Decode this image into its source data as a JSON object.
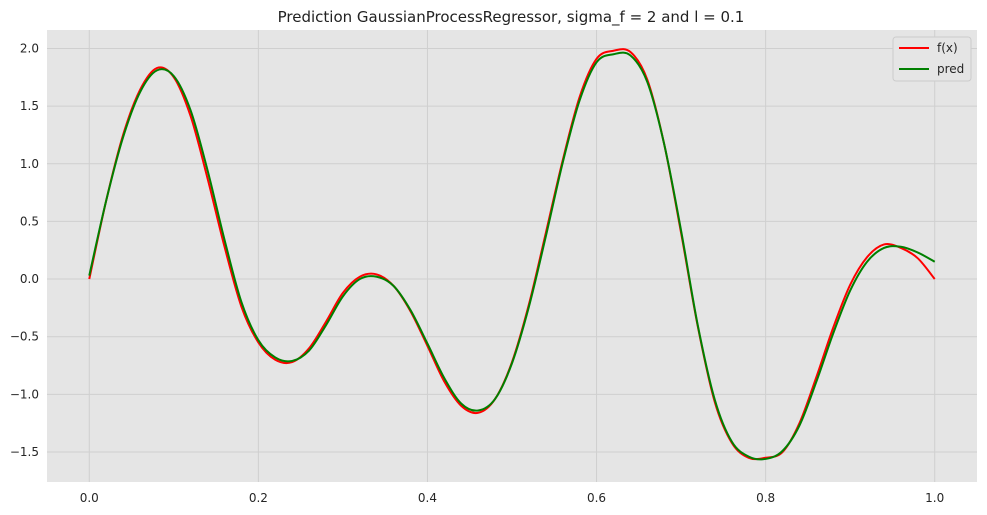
{
  "chart_data": {
    "type": "line",
    "title": "Prediction GaussianProcessRegressor, sigma_f = 2 and l = 0.1",
    "xlabel": "",
    "ylabel": "",
    "xlim": [
      -0.05,
      1.05
    ],
    "ylim": [
      -1.76,
      2.16
    ],
    "grid": true,
    "legend_position": "top-right",
    "x_ticks": [
      0.0,
      0.2,
      0.4,
      0.6,
      0.8,
      1.0
    ],
    "x_tick_labels": [
      "0.0",
      "0.2",
      "0.4",
      "0.6",
      "0.8",
      "1.0"
    ],
    "y_ticks": [
      -1.5,
      -1.0,
      -0.5,
      0.0,
      0.5,
      1.0,
      1.5,
      2.0
    ],
    "y_tick_labels": [
      "−1.5",
      "−1.0",
      "−0.5",
      "0.0",
      "0.5",
      "1.0",
      "1.5",
      "2.0"
    ],
    "series": [
      {
        "name": "f(x)",
        "color": "#ff0000",
        "x": [
          0.0,
          0.02,
          0.04,
          0.06,
          0.08,
          0.1,
          0.12,
          0.14,
          0.16,
          0.18,
          0.2,
          0.22,
          0.24,
          0.26,
          0.28,
          0.3,
          0.32,
          0.34,
          0.36,
          0.38,
          0.4,
          0.42,
          0.44,
          0.46,
          0.48,
          0.5,
          0.52,
          0.54,
          0.56,
          0.58,
          0.6,
          0.62,
          0.64,
          0.66,
          0.68,
          0.7,
          0.72,
          0.74,
          0.76,
          0.78,
          0.8,
          0.82,
          0.84,
          0.86,
          0.88,
          0.9,
          0.92,
          0.94,
          0.96,
          0.98,
          1.0
        ],
        "values": [
          0.0,
          0.68,
          1.25,
          1.64,
          1.83,
          1.75,
          1.41,
          0.87,
          0.28,
          -0.24,
          -0.55,
          -0.7,
          -0.72,
          -0.6,
          -0.37,
          -0.12,
          0.02,
          0.04,
          -0.06,
          -0.28,
          -0.58,
          -0.89,
          -1.1,
          -1.16,
          -1.04,
          -0.72,
          -0.22,
          0.4,
          1.03,
          1.58,
          1.91,
          1.98,
          1.97,
          1.73,
          1.17,
          0.4,
          -0.42,
          -1.07,
          -1.42,
          -1.55,
          -1.55,
          -1.5,
          -1.25,
          -0.85,
          -0.42,
          -0.05,
          0.19,
          0.3,
          0.27,
          0.18,
          0.0
        ]
      },
      {
        "name": "pred",
        "color": "#008000",
        "x": [
          0.0,
          0.02,
          0.04,
          0.06,
          0.08,
          0.1,
          0.12,
          0.14,
          0.16,
          0.18,
          0.2,
          0.22,
          0.24,
          0.26,
          0.28,
          0.3,
          0.32,
          0.34,
          0.36,
          0.38,
          0.4,
          0.42,
          0.44,
          0.46,
          0.48,
          0.5,
          0.52,
          0.54,
          0.56,
          0.58,
          0.6,
          0.62,
          0.64,
          0.66,
          0.68,
          0.7,
          0.72,
          0.74,
          0.76,
          0.78,
          0.8,
          0.82,
          0.84,
          0.86,
          0.88,
          0.9,
          0.92,
          0.94,
          0.96,
          0.98,
          1.0
        ],
        "values": [
          0.03,
          0.68,
          1.23,
          1.62,
          1.81,
          1.76,
          1.46,
          0.94,
          0.34,
          -0.2,
          -0.53,
          -0.68,
          -0.71,
          -0.62,
          -0.4,
          -0.15,
          0.0,
          0.02,
          -0.06,
          -0.27,
          -0.56,
          -0.86,
          -1.08,
          -1.14,
          -1.04,
          -0.73,
          -0.24,
          0.37,
          1.01,
          1.55,
          1.88,
          1.95,
          1.94,
          1.71,
          1.17,
          0.42,
          -0.41,
          -1.05,
          -1.41,
          -1.54,
          -1.56,
          -1.49,
          -1.27,
          -0.89,
          -0.47,
          -0.1,
          0.15,
          0.27,
          0.28,
          0.23,
          0.15
        ]
      }
    ]
  }
}
